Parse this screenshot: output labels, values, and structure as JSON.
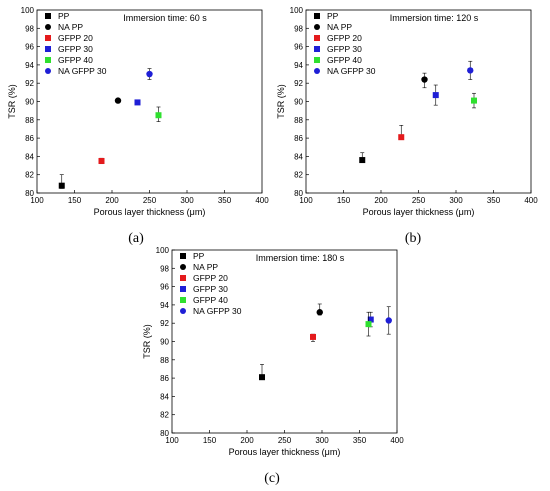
{
  "chart_data": [
    {
      "type": "scatter",
      "panel_label": "(a)",
      "annotation": "Immersion time: 60 s",
      "xlabel": "Porous layer thickness (μm)",
      "ylabel": "TSR (%)",
      "xlim": [
        100,
        400
      ],
      "ylim": [
        80,
        100
      ],
      "xticks": [
        100,
        150,
        200,
        250,
        300,
        350,
        400
      ],
      "yticks": [
        80,
        82,
        84,
        86,
        88,
        90,
        92,
        94,
        96,
        98,
        100
      ],
      "legend_position": "top-left",
      "grid": false,
      "series": [
        {
          "name": "PP",
          "marker": "square",
          "color": "#000000",
          "x": 133,
          "y": 80.8,
          "err_plus": 1.2,
          "err_minus": 0.3
        },
        {
          "name": "NA PP",
          "marker": "circle",
          "color": "#000000",
          "x": 208,
          "y": 90.1,
          "err_plus": 0.2,
          "err_minus": 0.2
        },
        {
          "name": "GFPP 20",
          "marker": "square",
          "color": "#e41a1c",
          "x": 186,
          "y": 83.5,
          "err_plus": 0.3,
          "err_minus": 0.3
        },
        {
          "name": "GFPP 30",
          "marker": "square",
          "color": "#1f1fd6",
          "x": 234,
          "y": 89.9,
          "err_plus": 0.2,
          "err_minus": 0.2
        },
        {
          "name": "GFPP 40",
          "marker": "square",
          "color": "#2fe02f",
          "x": 262,
          "y": 88.5,
          "err_plus": 0.9,
          "err_minus": 0.7
        },
        {
          "name": "NA GFPP 30",
          "marker": "circle",
          "color": "#1f1fd6",
          "x": 250,
          "y": 93.0,
          "err_plus": 0.6,
          "err_minus": 0.6
        }
      ]
    },
    {
      "type": "scatter",
      "panel_label": "(b)",
      "annotation": "Immersion time: 120 s",
      "xlabel": "Porous layer thickness (μm)",
      "ylabel": "TSR (%)",
      "xlim": [
        100,
        400
      ],
      "ylim": [
        80,
        100
      ],
      "xticks": [
        100,
        150,
        200,
        250,
        300,
        350,
        400
      ],
      "yticks": [
        80,
        82,
        84,
        86,
        88,
        90,
        92,
        94,
        96,
        98,
        100
      ],
      "legend_position": "top-left",
      "grid": false,
      "series": [
        {
          "name": "PP",
          "marker": "square",
          "color": "#000000",
          "x": 175,
          "y": 83.6,
          "err_plus": 0.8,
          "err_minus": 0.2
        },
        {
          "name": "NA PP",
          "marker": "circle",
          "color": "#000000",
          "x": 258,
          "y": 92.4,
          "err_plus": 0.7,
          "err_minus": 0.9
        },
        {
          "name": "GFPP 20",
          "marker": "square",
          "color": "#e41a1c",
          "x": 227,
          "y": 86.1,
          "err_plus": 1.3,
          "err_minus": 0.2
        },
        {
          "name": "GFPP 30",
          "marker": "square",
          "color": "#1f1fd6",
          "x": 273,
          "y": 90.7,
          "err_plus": 1.1,
          "err_minus": 1.1
        },
        {
          "name": "GFPP 40",
          "marker": "square",
          "color": "#2fe02f",
          "x": 324,
          "y": 90.1,
          "err_plus": 0.8,
          "err_minus": 0.8
        },
        {
          "name": "NA GFPP 30",
          "marker": "circle",
          "color": "#1f1fd6",
          "x": 319,
          "y": 93.4,
          "err_plus": 1.0,
          "err_minus": 1.0
        }
      ]
    },
    {
      "type": "scatter",
      "panel_label": "(c)",
      "annotation": "Immersion time: 180 s",
      "xlabel": "Porous layer thickness (μm)",
      "ylabel": "TSR (%)",
      "xlim": [
        100,
        400
      ],
      "ylim": [
        80,
        100
      ],
      "xticks": [
        100,
        150,
        200,
        250,
        300,
        350,
        400
      ],
      "yticks": [
        80,
        82,
        84,
        86,
        88,
        90,
        92,
        94,
        96,
        98,
        100
      ],
      "legend_position": "top-left",
      "grid": false,
      "series": [
        {
          "name": "PP",
          "marker": "square",
          "color": "#000000",
          "x": 220,
          "y": 86.1,
          "err_plus": 1.4,
          "err_minus": 0.2
        },
        {
          "name": "NA PP",
          "marker": "circle",
          "color": "#000000",
          "x": 297,
          "y": 93.2,
          "err_plus": 0.9,
          "err_minus": 0.3
        },
        {
          "name": "GFPP 20",
          "marker": "square",
          "color": "#e41a1c",
          "x": 288,
          "y": 90.5,
          "err_plus": 0.3,
          "err_minus": 0.5
        },
        {
          "name": "GFPP 30",
          "marker": "square",
          "color": "#1f1fd6",
          "x": 365,
          "y": 92.4,
          "err_plus": 0.8,
          "err_minus": 0.8
        },
        {
          "name": "GFPP 40",
          "marker": "square",
          "color": "#2fe02f",
          "x": 362,
          "y": 91.9,
          "err_plus": 1.3,
          "err_minus": 1.3
        },
        {
          "name": "NA GFPP 30",
          "marker": "circle",
          "color": "#1f1fd6",
          "x": 389,
          "y": 92.3,
          "err_plus": 1.5,
          "err_minus": 1.5
        }
      ]
    }
  ]
}
